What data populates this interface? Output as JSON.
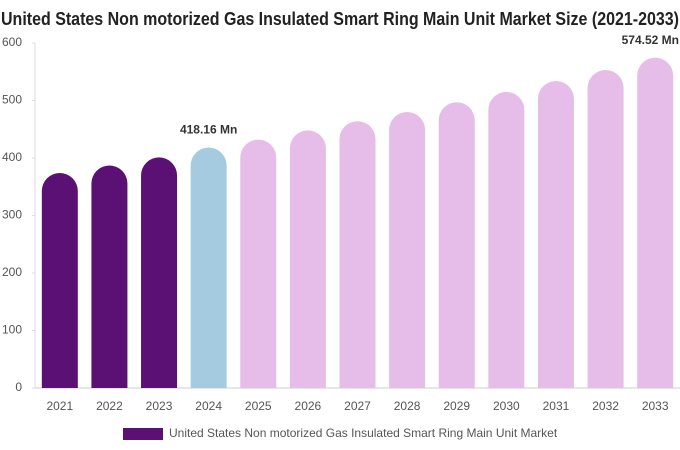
{
  "chart_data": {
    "type": "bar",
    "title": "United States Non motorized Gas Insulated Smart Ring Main Unit Market Size (2021-2033)",
    "categories": [
      "2021",
      "2022",
      "2023",
      "2024",
      "2025",
      "2026",
      "2027",
      "2028",
      "2029",
      "2030",
      "2031",
      "2032",
      "2033"
    ],
    "series": [
      {
        "name": "United States Non motorized Gas Insulated Smart Ring Main Unit Market",
        "color": "#5a1173",
        "values": [
          374,
          387,
          401,
          418.16,
          432,
          448,
          464,
          480,
          497,
          515,
          534,
          553,
          574.52
        ],
        "value_labels": [
          null,
          null,
          null,
          "418.16 Mn",
          null,
          null,
          null,
          null,
          null,
          null,
          null,
          null,
          "574.52 Mn"
        ],
        "colors": [
          "#5a1173",
          "#5a1173",
          "#5a1173",
          "#a4cbe0",
          "#e6bde8",
          "#e6bde8",
          "#e6bde8",
          "#e6bde8",
          "#e6bde8",
          "#e6bde8",
          "#e6bde8",
          "#e6bde8",
          "#e6bde8"
        ]
      }
    ],
    "ylim": [
      0,
      600
    ],
    "yticks": [
      0,
      100,
      200,
      300,
      400,
      500,
      600
    ],
    "legend": "bottom"
  }
}
